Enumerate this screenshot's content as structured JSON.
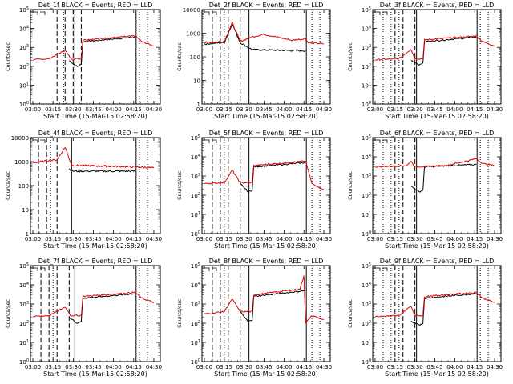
{
  "chart_data": [
    {
      "type": "line",
      "title": "Det_1f BLACK = Events, RED = LLD",
      "ylabel": "Counts/sec",
      "xlabel": "Start Time (15-Mar-15 02:58:20)",
      "x_ticks": [
        "03:00",
        "03:15",
        "03:30",
        "03:45",
        "04:00",
        "04:15",
        "04:30"
      ],
      "yscale": "log",
      "ylim": [
        1,
        100000
      ],
      "y_ticks": [
        "10^0",
        "10^1",
        "10^2",
        "10^3",
        "10^4",
        "10^5"
      ],
      "markers": {
        "dashed": [
          3.3,
          3.4,
          3.5,
          3.6
        ],
        "dotted": [
          3.38
        ],
        "solid": [
          3.52
        ],
        "end_dotted": [
          4.32,
          4.42
        ],
        "end_solid": 4.28
      },
      "series": [
        {
          "color": "#000000",
          "points": [
            [
              3.45,
              200
            ],
            [
              3.55,
              95
            ],
            [
              3.6,
              130
            ],
            [
              3.62,
              2000
            ],
            [
              4.27,
              3500
            ]
          ]
        },
        {
          "color": "#e00000",
          "points": [
            [
              3.0,
              220
            ],
            [
              3.2,
              250
            ],
            [
              3.4,
              700
            ],
            [
              3.47,
              250
            ],
            [
              3.6,
              250
            ],
            [
              3.62,
              2500
            ],
            [
              4.27,
              4000
            ],
            [
              4.35,
              2000
            ],
            [
              4.5,
              1200
            ]
          ]
        }
      ]
    },
    {
      "type": "line",
      "title": "Det_2f BLACK = Events, RED = LLD",
      "ylabel": "Counts/sec",
      "xlabel": "Start Time (15-Mar-15 02:58:20)",
      "x_ticks": [
        "03:00",
        "03:15",
        "03:30",
        "03:45",
        "04:00",
        "04:15",
        "04:30"
      ],
      "yscale": "log",
      "ylim": [
        1,
        10000
      ],
      "y_ticks": [
        "1",
        "10",
        "100",
        "1000",
        "10000"
      ],
      "markers": {
        "dashed": [
          3.1,
          3.2,
          3.3,
          3.45
        ],
        "dotted": [
          3.25
        ],
        "solid": [
          3.56
        ],
        "end_dotted": [
          4.35,
          4.45
        ],
        "end_solid": 4.28
      },
      "series": [
        {
          "color": "#000000",
          "points": [
            [
              3.0,
              350
            ],
            [
              3.25,
              400
            ],
            [
              3.35,
              2500
            ],
            [
              3.45,
              400
            ],
            [
              3.6,
              200
            ],
            [
              4.27,
              180
            ]
          ]
        },
        {
          "color": "#e00000",
          "points": [
            [
              3.0,
              400
            ],
            [
              3.25,
              450
            ],
            [
              3.35,
              2800
            ],
            [
              3.45,
              450
            ],
            [
              3.6,
              700
            ],
            [
              3.75,
              900
            ],
            [
              4.1,
              500
            ],
            [
              4.27,
              600
            ],
            [
              4.3,
              400
            ],
            [
              4.5,
              350
            ]
          ]
        }
      ]
    },
    {
      "type": "line",
      "title": "Det_3f BLACK = Events, RED = LLD",
      "ylabel": "Counts/sec",
      "xlabel": "Start Time (15-Mar-15 02:58:20)",
      "x_ticks": [
        "03:00",
        "03:15",
        "03:30",
        "03:45",
        "04:00",
        "04:15",
        "04:30"
      ],
      "yscale": "log",
      "ylim": [
        1,
        100000
      ],
      "y_ticks": [
        "10^0",
        "10^1",
        "10^2",
        "10^3",
        "10^4",
        "10^5"
      ],
      "markers": {
        "dashed": [
          3.25,
          3.35,
          3.5
        ],
        "dotted": [
          3.1,
          3.2,
          3.3
        ],
        "solid": [
          3.52
        ],
        "end_dotted": [
          4.32,
          4.42
        ],
        "end_solid": 4.28
      },
      "series": [
        {
          "color": "#000000",
          "points": [
            [
              3.45,
              200
            ],
            [
              3.55,
              120
            ],
            [
              3.6,
              150
            ],
            [
              3.62,
              2000
            ],
            [
              4.27,
              3500
            ]
          ]
        },
        {
          "color": "#e00000",
          "points": [
            [
              3.0,
              220
            ],
            [
              3.3,
              250
            ],
            [
              3.45,
              800
            ],
            [
              3.5,
              250
            ],
            [
              3.6,
              250
            ],
            [
              3.62,
              2500
            ],
            [
              4.27,
              4000
            ],
            [
              4.35,
              2000
            ],
            [
              4.5,
              1200
            ]
          ]
        }
      ]
    },
    {
      "type": "line",
      "title": "Det_4f BLACK = Events, RED = LLD",
      "ylabel": "Counts/sec",
      "xlabel": "Start Time (15-Mar-15 02:58:20)",
      "x_ticks": [
        "03:00",
        "03:15",
        "03:30",
        "03:45",
        "04:00",
        "04:15",
        "04:30"
      ],
      "yscale": "log",
      "ylim": [
        1,
        10000
      ],
      "y_ticks": [
        "1",
        "10",
        "100",
        "1000",
        "10000"
      ],
      "markers": {
        "dashed": [
          3.07,
          3.17,
          3.3
        ],
        "dotted": [
          3.22
        ],
        "solid": [
          3.48
        ],
        "end_dotted": [
          4.32,
          4.42
        ],
        "end_solid": 4.28
      },
      "series": [
        {
          "color": "#000000",
          "points": [
            [
              3.45,
              500
            ],
            [
              3.5,
              400
            ],
            [
              4.27,
              400
            ]
          ]
        },
        {
          "color": "#e00000",
          "points": [
            [
              3.0,
              900
            ],
            [
              3.3,
              1200
            ],
            [
              3.4,
              4000
            ],
            [
              3.48,
              700
            ],
            [
              4.27,
              600
            ],
            [
              4.5,
              550
            ]
          ]
        }
      ]
    },
    {
      "type": "line",
      "title": "Det_5f BLACK = Events, RED = LLD",
      "ylabel": "Counts/sec",
      "xlabel": "Start Time (15-Mar-15 02:58:20)",
      "x_ticks": [
        "03:00",
        "03:15",
        "03:30",
        "03:45",
        "04:00",
        "04:15",
        "04:30"
      ],
      "yscale": "log",
      "ylim": [
        1,
        100000
      ],
      "y_ticks": [
        "10^0",
        "10^1",
        "10^2",
        "10^3",
        "10^4",
        "10^5"
      ],
      "markers": {
        "dashed": [
          3.1,
          3.2,
          3.3,
          3.45
        ],
        "dotted": [
          3.25
        ],
        "solid": [
          3.56
        ],
        "end_dotted": [
          4.35,
          4.45
        ],
        "end_solid": 4.28
      },
      "series": [
        {
          "color": "#000000",
          "points": [
            [
              3.45,
              400
            ],
            [
              3.55,
              150
            ],
            [
              3.6,
              180
            ],
            [
              3.62,
              3000
            ],
            [
              4.27,
              5000
            ]
          ]
        },
        {
          "color": "#e00000",
          "points": [
            [
              3.0,
              400
            ],
            [
              3.25,
              450
            ],
            [
              3.35,
              2000
            ],
            [
              3.45,
              450
            ],
            [
              3.6,
              450
            ],
            [
              3.62,
              3500
            ],
            [
              4.27,
              6000
            ],
            [
              4.35,
              400
            ],
            [
              4.5,
              200
            ]
          ]
        }
      ]
    },
    {
      "type": "line",
      "title": "Det_6f BLACK = Events, RED = LLD",
      "ylabel": "Counts/sec",
      "xlabel": "Start Time (15-Mar-15 02:58:20)",
      "x_ticks": [
        "03:00",
        "03:15",
        "03:30",
        "03:45",
        "04:00",
        "04:15",
        "04:30"
      ],
      "yscale": "log",
      "ylim": [
        1,
        100000
      ],
      "y_ticks": [
        "10^0",
        "10^1",
        "10^2",
        "10^3",
        "10^4",
        "10^5"
      ],
      "markers": {
        "dashed": [
          3.25,
          3.35,
          3.5
        ],
        "dotted": [
          3.1,
          3.2,
          3.3
        ],
        "solid": [
          3.52
        ],
        "end_dotted": [
          4.32,
          4.42
        ],
        "end_solid": 4.28
      },
      "series": [
        {
          "color": "#000000",
          "points": [
            [
              3.45,
              300
            ],
            [
              3.55,
              150
            ],
            [
              3.6,
              180
            ],
            [
              3.62,
              3000
            ],
            [
              4.27,
              4000
            ]
          ]
        },
        {
          "color": "#e00000",
          "points": [
            [
              3.0,
              3000
            ],
            [
              3.4,
              3500
            ],
            [
              3.45,
              6000
            ],
            [
              3.5,
              3000
            ],
            [
              3.9,
              3500
            ],
            [
              4.27,
              8000
            ],
            [
              4.35,
              4500
            ],
            [
              4.5,
              3500
            ]
          ]
        }
      ]
    },
    {
      "type": "line",
      "title": "Det_7f BLACK = Events, RED = LLD",
      "ylabel": "Counts/sec",
      "xlabel": "Start Time (15-Mar-15 02:58:20)",
      "x_ticks": [
        "03:00",
        "03:15",
        "03:30",
        "03:45",
        "04:00",
        "04:15",
        "04:30"
      ],
      "yscale": "log",
      "ylim": [
        1,
        100000
      ],
      "y_ticks": [
        "10^0",
        "10^1",
        "10^2",
        "10^3",
        "10^4",
        "10^5"
      ],
      "markers": {
        "dashed": [
          3.1,
          3.2,
          3.3,
          3.45
        ],
        "dotted": [
          3.25
        ],
        "solid": [
          3.52
        ],
        "end_dotted": [
          4.32,
          4.42
        ],
        "end_solid": 4.28
      },
      "series": [
        {
          "color": "#000000",
          "points": [
            [
              3.45,
              200
            ],
            [
              3.55,
              100
            ],
            [
              3.6,
              130
            ],
            [
              3.62,
              2000
            ],
            [
              4.27,
              3500
            ]
          ]
        },
        {
          "color": "#e00000",
          "points": [
            [
              3.0,
              220
            ],
            [
              3.2,
              250
            ],
            [
              3.4,
              700
            ],
            [
              3.47,
              250
            ],
            [
              3.6,
              250
            ],
            [
              3.62,
              2500
            ],
            [
              4.27,
              4000
            ],
            [
              4.35,
              2000
            ],
            [
              4.5,
              1200
            ]
          ]
        }
      ]
    },
    {
      "type": "line",
      "title": "Det_8f BLACK = Events, RED = LLD",
      "ylabel": "Counts/sec",
      "xlabel": "Start Time (15-Mar-15 02:58:20)",
      "x_ticks": [
        "03:00",
        "03:15",
        "03:30",
        "03:45",
        "04:00",
        "04:15",
        "04:30"
      ],
      "yscale": "log",
      "ylim": [
        1,
        100000
      ],
      "y_ticks": [
        "10^0",
        "10^1",
        "10^2",
        "10^3",
        "10^4",
        "10^5"
      ],
      "markers": {
        "dashed": [
          3.1,
          3.2,
          3.3,
          3.45
        ],
        "dotted": [
          3.25
        ],
        "solid": [
          3.56
        ],
        "end_dotted": [
          4.35,
          4.45
        ],
        "end_solid": 4.28
      },
      "series": [
        {
          "color": "#000000",
          "points": [
            [
              3.45,
              400
            ],
            [
              3.55,
              120
            ],
            [
              3.6,
              150
            ],
            [
              3.62,
              2500
            ],
            [
              4.27,
              5000
            ]
          ]
        },
        {
          "color": "#e00000",
          "points": [
            [
              3.0,
              300
            ],
            [
              3.25,
              400
            ],
            [
              3.35,
              1800
            ],
            [
              3.45,
              400
            ],
            [
              3.6,
              400
            ],
            [
              3.62,
              3000
            ],
            [
              4.2,
              6000
            ],
            [
              4.25,
              30000
            ],
            [
              4.27,
              100
            ],
            [
              4.35,
              250
            ],
            [
              4.5,
              150
            ]
          ]
        }
      ]
    },
    {
      "type": "line",
      "title": "Det_9f BLACK = Events, RED = LLD",
      "ylabel": "Counts/sec",
      "xlabel": "Start Time (15-Mar-15 02:58:20)",
      "x_ticks": [
        "03:00",
        "03:15",
        "03:30",
        "03:45",
        "04:00",
        "04:15",
        "04:30"
      ],
      "yscale": "log",
      "ylim": [
        1,
        100000
      ],
      "y_ticks": [
        "10^0",
        "10^1",
        "10^2",
        "10^3",
        "10^4",
        "10^5"
      ],
      "markers": {
        "dashed": [
          3.25,
          3.35,
          3.5
        ],
        "dotted": [
          3.1,
          3.2,
          3.3
        ],
        "solid": [
          3.52
        ],
        "end_dotted": [
          4.32,
          4.42
        ],
        "end_solid": 4.28
      },
      "series": [
        {
          "color": "#000000",
          "points": [
            [
              3.45,
              120
            ],
            [
              3.55,
              80
            ],
            [
              3.6,
              100
            ],
            [
              3.62,
              2000
            ],
            [
              4.27,
              3500
            ]
          ]
        },
        {
          "color": "#e00000",
          "points": [
            [
              3.0,
              220
            ],
            [
              3.3,
              250
            ],
            [
              3.45,
              800
            ],
            [
              3.5,
              250
            ],
            [
              3.6,
              250
            ],
            [
              3.62,
              2500
            ],
            [
              4.27,
              4000
            ],
            [
              4.35,
              2000
            ],
            [
              4.5,
              1200
            ]
          ]
        }
      ]
    }
  ]
}
